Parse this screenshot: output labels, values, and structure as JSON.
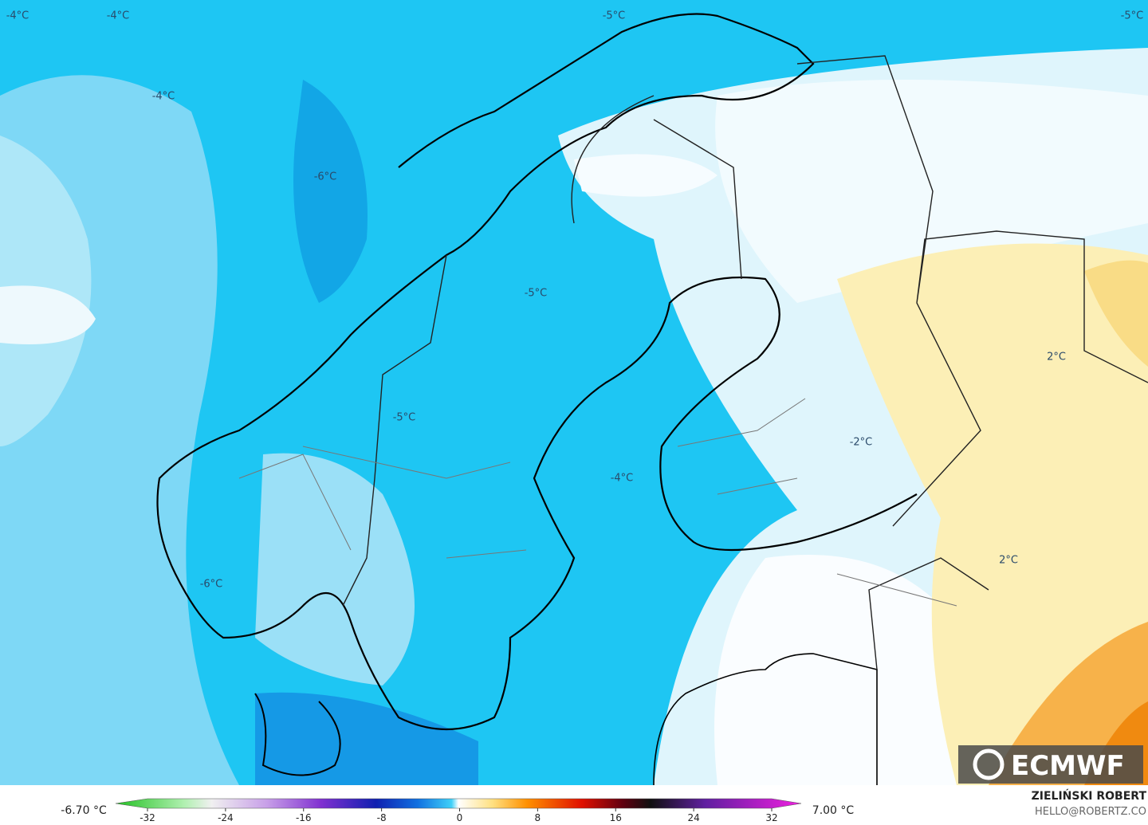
{
  "map": {
    "labels": [
      "-4°C",
      "-4°C",
      "-5°C",
      "-5°C",
      "-4°C",
      "-6°C",
      "-5°C",
      "-5°C",
      "-4°C",
      "-2°C",
      "2°C",
      "2°C",
      "-6°C"
    ],
    "logo": "ECMWF"
  },
  "colorbar": {
    "min_label": "-6.70 °C",
    "max_label": "7.00 °C",
    "ticks": [
      -32,
      -24,
      -16,
      -8,
      0,
      8,
      16,
      24,
      32
    ]
  },
  "credits": {
    "author": "ZIELIŃSKI ROBERT",
    "contact": "HELLO@ROBERTZ.CO"
  }
}
